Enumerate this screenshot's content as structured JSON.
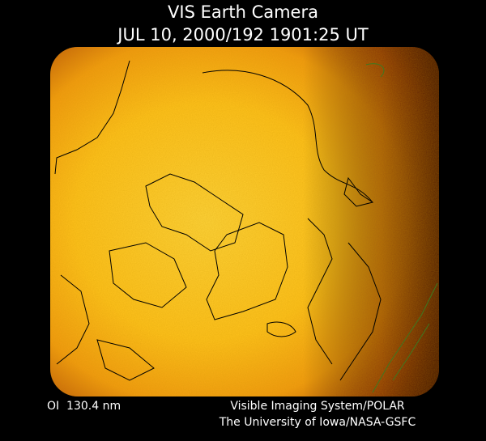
{
  "header": {
    "title": "VIS Earth Camera",
    "timestamp": "JUL 10, 2000/192 1901:25 UT"
  },
  "footer": {
    "filter": "OI  130.4 nm",
    "credit": [
      "Visible Imaging System/POLAR",
      "The University of Iowa/NASA-GSFC"
    ]
  }
}
